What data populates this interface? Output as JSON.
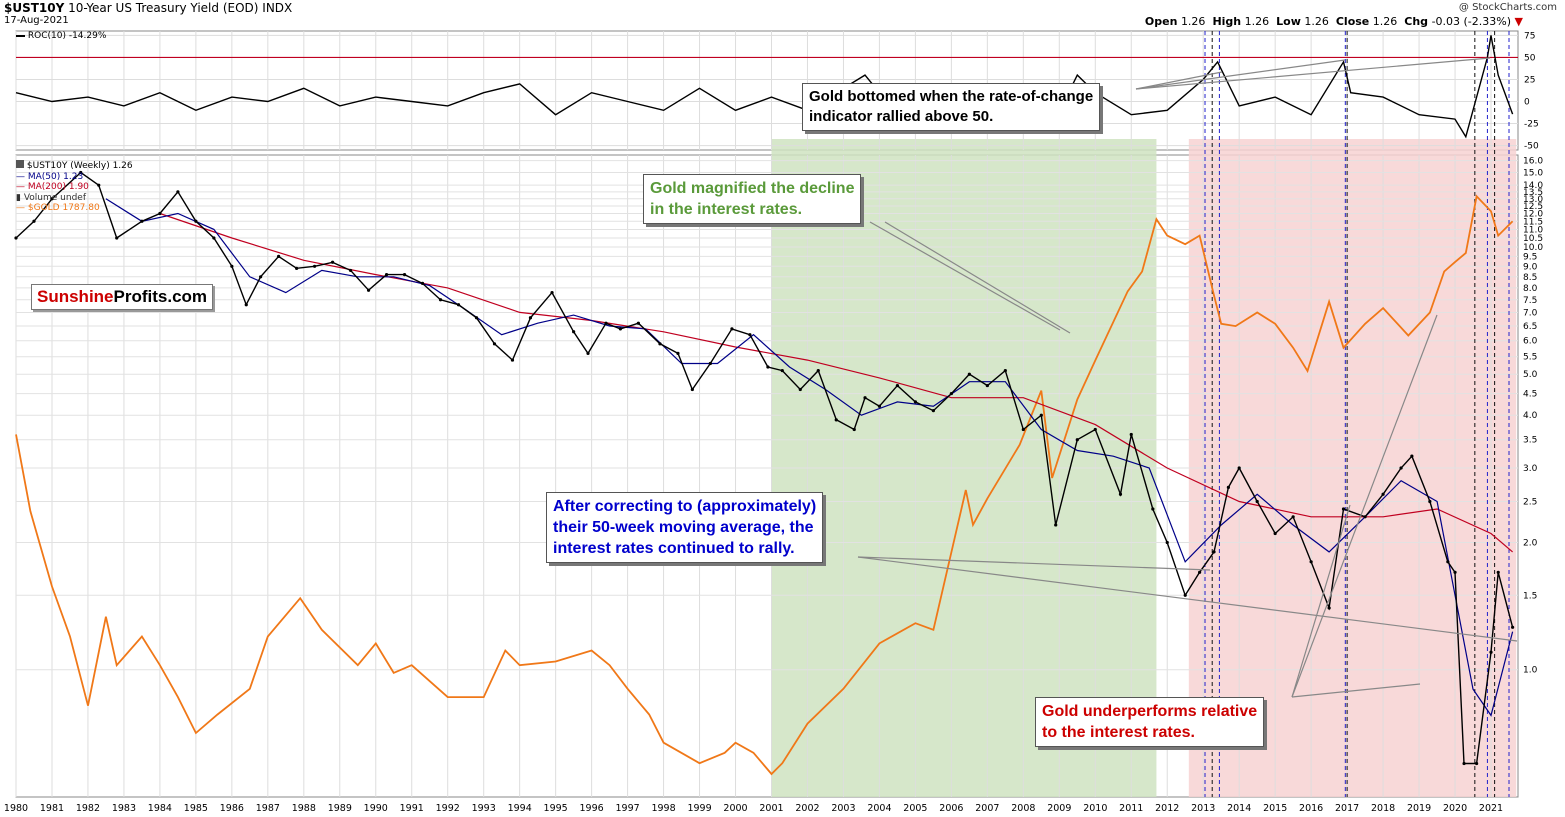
{
  "header": {
    "symbol": "$UST10Y",
    "title": "10-Year US Treasury Yield (EOD)",
    "exchange": "INDX",
    "date": "17-Aug-2021",
    "open_label": "Open",
    "open": "1.26",
    "high_label": "High",
    "high": "1.26",
    "low_label": "Low",
    "low": "1.26",
    "close_label": "Close",
    "close": "1.26",
    "chg_label": "Chg",
    "chg": "-0.03 (-2.33%)",
    "watermark": "@ StockCharts.com"
  },
  "roc_legend": "ROC(10) -14.29%",
  "price_legend": {
    "main": "$UST10Y (Weekly) 1.26",
    "ma50": "MA(50) 1.23",
    "ma200": "MA(200) 1.90",
    "volume": "Volume undef",
    "gold": "$GOLD 1787.80"
  },
  "logo": {
    "part1": "Sunshine",
    "part2": "Profits.com"
  },
  "annotations": {
    "roc_note_1": "Gold bottomed when the rate-of-change",
    "roc_note_2": "indicator rallied above 50.",
    "green_note_1": "Gold magnified the decline",
    "green_note_2": "in the interest rates.",
    "blue_note_1": "After correcting to (approximately)",
    "blue_note_2": "their 50-week moving average, the",
    "blue_note_3": "interest rates continued to rally.",
    "red_note_1": "Gold underperforms relative",
    "red_note_2": "to the interest rates."
  },
  "colors": {
    "gold": "#f07818",
    "ma50": "#000088",
    "ma200": "#c00020",
    "green_zone": "#cfe3c1",
    "red_zone": "#f7d2d2",
    "green_text": "#5a9a3a",
    "blue_text": "#0000cc",
    "red_text": "#cc0000"
  },
  "chart_data": {
    "type": "line",
    "x_ticks": [
      "1980",
      "1981",
      "1982",
      "1983",
      "1984",
      "1985",
      "1986",
      "1987",
      "1988",
      "1989",
      "1990",
      "1991",
      "1992",
      "1993",
      "1994",
      "1995",
      "1996",
      "1997",
      "1998",
      "1999",
      "2000",
      "2001",
      "2002",
      "2003",
      "2004",
      "2005",
      "2006",
      "2007",
      "2008",
      "2009",
      "2010",
      "2011",
      "2012",
      "2013",
      "2014",
      "2015",
      "2016",
      "2017",
      "2018",
      "2019",
      "2020",
      "2021"
    ],
    "roc_ticks": [
      "75",
      "50",
      "25",
      "0",
      "-25",
      "-50"
    ],
    "roc_range": [
      -55,
      80
    ],
    "roc_reference": 50,
    "yield_ticks": [
      "16.0",
      "15.0",
      "14.0",
      "13.5",
      "13.0",
      "12.5",
      "12.0",
      "11.5",
      "11.0",
      "10.5",
      "10.0",
      "9.5",
      "9.0",
      "8.5",
      "8.0",
      "7.5",
      "7.0",
      "6.5",
      "6.0",
      "5.5",
      "5.0",
      "4.5",
      "4.0",
      "3.5",
      "3.0",
      "2.5",
      "2.0",
      "1.5",
      "1.0"
    ],
    "yield_scale": "log",
    "yield_range": [
      0.5,
      16.5
    ],
    "gold_range": [
      240,
      2100
    ],
    "green_zone_years": [
      2001.0,
      2011.7
    ],
    "red_zone_years": [
      2012.6,
      2021.7
    ],
    "blue_dashed_years": [
      2013.05,
      2013.45,
      2016.95,
      2020.9,
      2021.5
    ],
    "black_dashed_years": [
      2013.25,
      2017.0,
      2020.55,
      2021.1
    ],
    "series": [
      {
        "name": "$UST10Y (Weekly)",
        "x": [
          1980.0,
          1980.5,
          1981.0,
          1981.8,
          1982.3,
          1982.8,
          1983.5,
          1984.0,
          1984.5,
          1985.0,
          1985.5,
          1986.0,
          1986.4,
          1986.8,
          1987.3,
          1987.8,
          1988.3,
          1988.8,
          1989.3,
          1989.8,
          1990.3,
          1990.8,
          1991.3,
          1991.8,
          1992.3,
          1992.8,
          1993.3,
          1993.8,
          1994.3,
          1994.9,
          1995.5,
          1995.9,
          1996.4,
          1996.8,
          1997.3,
          1997.9,
          1998.4,
          1998.8,
          1999.3,
          1999.9,
          2000.4,
          2000.9,
          2001.3,
          2001.8,
          2002.3,
          2002.8,
          2003.3,
          2003.6,
          2004.0,
          2004.5,
          2005.0,
          2005.5,
          2006.0,
          2006.5,
          2007.0,
          2007.5,
          2008.0,
          2008.5,
          2008.9,
          2009.5,
          2010.0,
          2010.7,
          2011.0,
          2011.6,
          2012.0,
          2012.5,
          2012.9,
          2013.3,
          2013.7,
          2014.0,
          2014.5,
          2015.0,
          2015.5,
          2016.0,
          2016.5,
          2016.9,
          2017.5,
          2018.0,
          2018.5,
          2018.8,
          2019.3,
          2019.8,
          2020.0,
          2020.25,
          2020.6,
          2021.0,
          2021.2,
          2021.6
        ],
        "y": [
          10.5,
          11.5,
          13.0,
          15.0,
          14.0,
          10.5,
          11.5,
          12.0,
          13.5,
          11.5,
          10.5,
          9.0,
          7.3,
          8.5,
          9.5,
          8.9,
          9.0,
          9.2,
          8.8,
          7.9,
          8.6,
          8.6,
          8.2,
          7.5,
          7.3,
          6.8,
          5.9,
          5.4,
          6.8,
          7.8,
          6.3,
          5.6,
          6.6,
          6.4,
          6.6,
          5.9,
          5.6,
          4.6,
          5.3,
          6.4,
          6.2,
          5.2,
          5.1,
          4.6,
          5.1,
          3.9,
          3.7,
          4.4,
          4.2,
          4.7,
          4.3,
          4.1,
          4.5,
          5.0,
          4.7,
          5.1,
          3.7,
          4.0,
          2.2,
          3.5,
          3.7,
          2.6,
          3.6,
          2.4,
          2.0,
          1.5,
          1.7,
          1.9,
          2.7,
          3.0,
          2.5,
          2.1,
          2.3,
          1.8,
          1.4,
          2.4,
          2.3,
          2.6,
          3.0,
          3.2,
          2.5,
          1.8,
          1.7,
          0.6,
          0.6,
          1.1,
          1.7,
          1.26
        ]
      },
      {
        "name": "MA(50)",
        "x": [
          1982.5,
          1983.5,
          1984.5,
          1985.5,
          1986.5,
          1987.5,
          1988.5,
          1989.5,
          1990.5,
          1991.5,
          1992.5,
          1993.5,
          1994.5,
          1995.5,
          1996.5,
          1997.5,
          1998.5,
          1999.5,
          2000.5,
          2001.5,
          2002.5,
          2003.5,
          2004.5,
          2005.5,
          2006.5,
          2007.5,
          2008.5,
          2009.5,
          2010.5,
          2011.5,
          2012.5,
          2013.5,
          2014.5,
          2015.5,
          2016.5,
          2017.5,
          2018.5,
          2019.5,
          2020.5,
          2021.0,
          2021.6
        ],
        "y": [
          13.0,
          11.5,
          12.0,
          11.0,
          8.5,
          7.8,
          8.8,
          8.5,
          8.5,
          8.1,
          7.1,
          6.2,
          6.6,
          6.9,
          6.5,
          6.4,
          5.3,
          5.3,
          6.2,
          5.2,
          4.6,
          4.0,
          4.3,
          4.2,
          4.8,
          4.8,
          3.7,
          3.3,
          3.2,
          3.0,
          1.8,
          2.2,
          2.6,
          2.2,
          1.9,
          2.3,
          2.8,
          2.5,
          0.9,
          0.78,
          1.23
        ]
      },
      {
        "name": "MA(200)",
        "x": [
          1984.0,
          1986.0,
          1988.0,
          1990.0,
          1992.0,
          1994.0,
          1996.0,
          1998.0,
          2000.0,
          2002.0,
          2004.0,
          2006.0,
          2008.0,
          2010.0,
          2012.0,
          2014.0,
          2016.0,
          2018.0,
          2019.5,
          2021.0,
          2021.6
        ],
        "y": [
          12.0,
          10.5,
          9.3,
          8.6,
          8.0,
          7.0,
          6.7,
          6.3,
          5.8,
          5.4,
          4.9,
          4.4,
          4.4,
          3.8,
          3.0,
          2.5,
          2.3,
          2.3,
          2.4,
          2.1,
          1.9
        ]
      },
      {
        "name": "$GOLD",
        "x": [
          1980.0,
          1980.4,
          1981.0,
          1981.5,
          1982.0,
          1982.5,
          1982.8,
          1983.5,
          1984.0,
          1984.5,
          1985.0,
          1985.6,
          1986.5,
          1987.0,
          1987.9,
          1988.5,
          1989.5,
          1990.0,
          1990.5,
          1991.0,
          1992.0,
          1993.0,
          1993.6,
          1994.0,
          1995.0,
          1996.0,
          1996.5,
          1997.0,
          1997.6,
          1998.0,
          1999.0,
          1999.7,
          2000.0,
          2000.5,
          2001.0,
          2001.3,
          2002.0,
          2003.0,
          2004.0,
          2005.0,
          2005.5,
          2006.4,
          2006.6,
          2007.0,
          2007.9,
          2008.5,
          2008.8,
          2009.5,
          2010.0,
          2010.9,
          2011.3,
          2011.7,
          2012.0,
          2012.5,
          2012.9,
          2013.3,
          2013.5,
          2013.9,
          2014.5,
          2015.0,
          2015.5,
          2015.9,
          2016.5,
          2016.9,
          2017.5,
          2018.0,
          2018.7,
          2019.3,
          2019.7,
          2020.0,
          2020.3,
          2020.6,
          2021.0,
          2021.2,
          2021.6
        ],
        "y": [
          850,
          650,
          500,
          420,
          330,
          450,
          380,
          420,
          380,
          340,
          300,
          320,
          350,
          420,
          480,
          430,
          380,
          410,
          370,
          380,
          340,
          340,
          400,
          380,
          385,
          400,
          380,
          350,
          320,
          290,
          270,
          280,
          290,
          280,
          260,
          270,
          310,
          350,
          410,
          440,
          430,
          700,
          620,
          680,
          820,
          990,
          730,
          960,
          1100,
          1400,
          1500,
          1800,
          1700,
          1650,
          1700,
          1380,
          1250,
          1240,
          1300,
          1250,
          1150,
          1060,
          1350,
          1150,
          1250,
          1320,
          1200,
          1300,
          1500,
          1550,
          1600,
          1950,
          1850,
          1700,
          1787.8
        ]
      },
      {
        "name": "ROC(10)",
        "x": [
          1980.0,
          1981.0,
          1982.0,
          1983.0,
          1984.0,
          1985.0,
          1986.0,
          1987.0,
          1988.0,
          1989.0,
          1990.0,
          1991.0,
          1992.0,
          1993.0,
          1994.0,
          1995.0,
          1996.0,
          1997.0,
          1998.0,
          1999.0,
          2000.0,
          2001.0,
          2002.0,
          2003.0,
          2003.6,
          2004.0,
          2005.0,
          2006.0,
          2007.0,
          2008.0,
          2008.9,
          2009.5,
          2010.0,
          2011.0,
          2012.0,
          2013.0,
          2013.4,
          2014.0,
          2015.0,
          2016.0,
          2016.9,
          2017.1,
          2018.0,
          2019.0,
          2020.0,
          2020.3,
          2020.9,
          2021.0,
          2021.2,
          2021.6
        ],
        "y": [
          10,
          0,
          5,
          -5,
          10,
          -10,
          5,
          0,
          15,
          -5,
          5,
          0,
          -5,
          10,
          20,
          -15,
          10,
          0,
          -10,
          15,
          -10,
          5,
          -10,
          15,
          30,
          10,
          5,
          15,
          -10,
          5,
          -20,
          30,
          10,
          -15,
          -10,
          25,
          45,
          -5,
          5,
          -15,
          45,
          10,
          5,
          -15,
          -20,
          -40,
          50,
          75,
          30,
          -14.29
        ]
      }
    ]
  }
}
